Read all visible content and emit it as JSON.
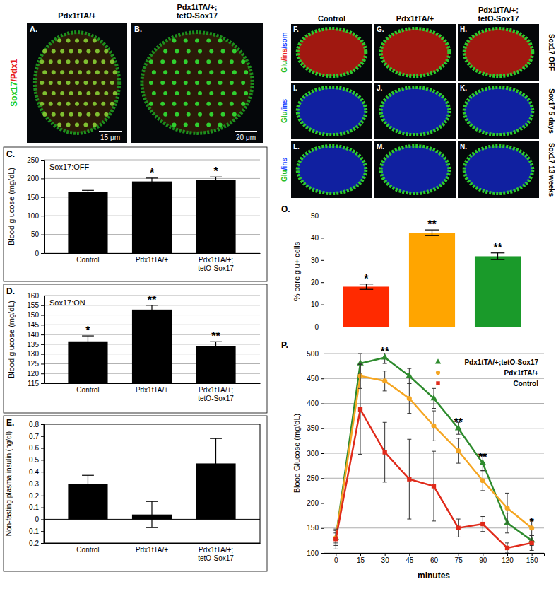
{
  "images": {
    "top": {
      "stain": [
        {
          "text": "Sox17",
          "color": "#22cc22"
        },
        {
          "text": "/Pdx1",
          "color": "#e82020"
        }
      ],
      "panels": [
        {
          "letter": "A.",
          "title": [
            "Pdx1tTA/+"
          ],
          "scale_bar": "15 μm"
        },
        {
          "letter": "B.",
          "title": [
            "Pdx1tTA/+;",
            "tetO-Sox17"
          ],
          "scale_bar": "20 μm"
        }
      ]
    },
    "grid": {
      "columns": [
        [
          "Control"
        ],
        [
          "Pdx1tTA/+"
        ],
        [
          "Pdx1tTA/+;",
          "tetO-Sox17"
        ]
      ],
      "rows": [
        {
          "label": "Sox17 OFF",
          "stain": [
            {
              "text": "Glu",
              "color": "#22bb22"
            },
            {
              "text": "/ins",
              "color": "#e82020"
            },
            {
              "text": "/som",
              "color": "#2040ff"
            }
          ],
          "letters": [
            "F.",
            "G.",
            "H."
          ]
        },
        {
          "label": "Sox17 5 days",
          "stain": [
            {
              "text": "Glu",
              "color": "#22bb22"
            },
            {
              "text": "/ins",
              "color": "#2040ff"
            }
          ],
          "letters": [
            "I.",
            "J.",
            "K."
          ]
        },
        {
          "label": "Sox17 13 weeks",
          "stain": [
            {
              "text": "Glu",
              "color": "#22bb22"
            },
            {
              "text": "/ins",
              "color": "#2040ff"
            }
          ],
          "letters": [
            "L.",
            "M.",
            "N."
          ]
        }
      ]
    }
  },
  "chart_data": [
    {
      "type": "bar",
      "panel": "C.",
      "title": "Sox17:OFF",
      "y_label": "Blood glucose (mg/dL)",
      "categories": [
        "Control",
        "Pdx1tTA/+",
        "Pdx1tTA/+;\ntetO-Sox17"
      ],
      "values": [
        163,
        192,
        196
      ],
      "errors": [
        5,
        9,
        8
      ],
      "significance": [
        null,
        "*",
        "*"
      ],
      "color": "#000000",
      "ylim": [
        0,
        250
      ],
      "yticks": [
        0,
        50,
        100,
        150,
        200,
        250
      ],
      "grid": true
    },
    {
      "type": "bar",
      "panel": "D.",
      "title": "Sox17:ON",
      "y_label": "Blood glucose (mg/dL)",
      "categories": [
        "Control",
        "Pdx1tTA/+",
        "Pdx1tTA/+;\ntetO-Sox17"
      ],
      "values": [
        136.5,
        152.8,
        134
      ],
      "errors": [
        2.8,
        2.2,
        2.3
      ],
      "significance": [
        "*",
        "**",
        "**"
      ],
      "color": "#000000",
      "ylim": [
        115,
        160
      ],
      "yticks": [
        115,
        120,
        125,
        130,
        135,
        140,
        145,
        150,
        155,
        160
      ],
      "grid": true
    },
    {
      "type": "bar",
      "panel": "E.",
      "y_label": "Non-fasting plasma insulin (ng/dl)",
      "categories": [
        "Control",
        "Pdx1tTA/+",
        "Pdx1tTA/+;\ntetO-Sox17"
      ],
      "values": [
        0.3,
        0.04,
        0.47
      ],
      "errors": [
        0.07,
        0.11,
        0.21
      ],
      "color": "#000000",
      "ylim": [
        -0.2,
        0.8
      ],
      "yticks": [
        -0.2,
        -0.1,
        0,
        0.1,
        0.2,
        0.3,
        0.4,
        0.5,
        0.6,
        0.7,
        0.8
      ],
      "grid": false
    },
    {
      "type": "bar",
      "panel": "O.",
      "y_label": "% core glu+ cells",
      "categories": [
        null,
        null,
        null
      ],
      "values": [
        18,
        42.3,
        31.7
      ],
      "errors": [
        1.2,
        1.3,
        1.5
      ],
      "significance": [
        "*",
        "**",
        "**"
      ],
      "colors": [
        "#ff2a00",
        "#ffa500",
        "#1a9a2a"
      ],
      "ylim": [
        0,
        50
      ],
      "yticks": [
        0,
        10,
        20,
        30,
        40,
        50
      ],
      "grid": false,
      "tick_labels": "y"
    },
    {
      "type": "line",
      "panel": "P.",
      "x_label": "minutes",
      "y_label": "Blood Glucose (mg/dL)",
      "categories": [
        0,
        15,
        30,
        45,
        60,
        75,
        90,
        120,
        150
      ],
      "series": [
        {
          "name": "Pdx1tTA/+;tetO-Sox17",
          "color": "#2e8b2e",
          "marker": "triangle",
          "values": [
            130,
            480,
            492,
            455,
            410,
            350,
            280,
            160,
            125
          ],
          "errors": [
            15,
            20,
            12,
            15,
            20,
            12,
            15,
            20,
            10
          ]
        },
        {
          "name": "Pdx1tTA/+",
          "color": "#f5a623",
          "marker": "circle",
          "values": [
            130,
            455,
            445,
            410,
            355,
            305,
            245,
            190,
            150
          ],
          "errors": [
            10,
            25,
            20,
            30,
            30,
            25,
            20,
            30,
            15
          ]
        },
        {
          "name": "Control",
          "color": "#e02a1a",
          "marker": "square",
          "values": [
            128,
            388,
            302,
            248,
            234,
            150,
            158,
            110,
            120
          ],
          "errors": [
            20,
            90,
            60,
            80,
            70,
            18,
            15,
            10,
            15
          ]
        }
      ],
      "significance": [
        null,
        null,
        "**",
        null,
        null,
        "**",
        "**",
        null,
        "*"
      ],
      "ylim": [
        100,
        500
      ],
      "yticks": [
        100,
        150,
        200,
        250,
        300,
        350,
        400,
        450,
        500
      ],
      "grid": true,
      "legend": "top-right"
    }
  ]
}
